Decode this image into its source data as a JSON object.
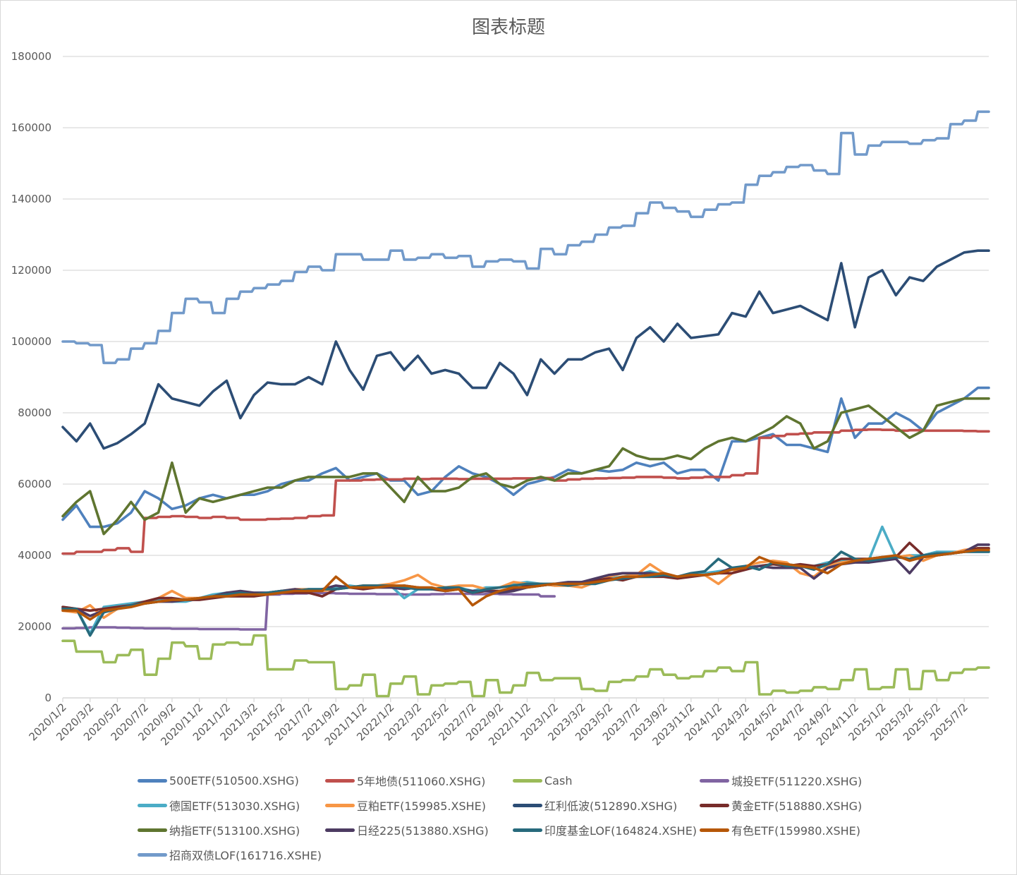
{
  "chart_data": {
    "type": "line",
    "title": "图表标题",
    "xlabel": "",
    "ylabel": "",
    "ylim": [
      0,
      180000
    ],
    "yticks": [
      "0",
      "20000",
      "40000",
      "60000",
      "80000",
      "100000",
      "120000",
      "140000",
      "160000",
      "180000"
    ],
    "grid": true,
    "legend_position": "bottom",
    "x_ticks": [
      "2020/1/2",
      "2020/3/2",
      "2020/5/2",
      "2020/7/2",
      "2020/9/2",
      "2020/11/2",
      "2021/1/2",
      "2021/3/2",
      "2021/5/2",
      "2021/7/2",
      "2021/9/2",
      "2021/11/2",
      "2022/1/2",
      "2022/3/2",
      "2022/5/2",
      "2022/7/2",
      "2022/9/2",
      "2022/11/2",
      "2023/1/2",
      "2023/3/2",
      "2023/5/2",
      "2023/7/2",
      "2023/9/2",
      "2023/11/2",
      "2024/1/2",
      "2024/3/2",
      "2024/5/2",
      "2024/7/2",
      "2024/9/2",
      "2024/11/2",
      "2025/1/2",
      "2025/3/2",
      "2025/5/2",
      "2025/7/2"
    ],
    "x_months": "monthly from 2020/1 to 2025/8",
    "series": [
      {
        "name": "500ETF(510500.XSHG)",
        "color": "#4f81bd",
        "values": [
          50000,
          54000,
          48000,
          48000,
          49000,
          52000,
          58000,
          56000,
          53000,
          54000,
          56000,
          57000,
          56000,
          57000,
          57000,
          58000,
          60000,
          61000,
          61000,
          63000,
          64500,
          61000,
          62000,
          63000,
          61000,
          61000,
          57000,
          58000,
          62000,
          65000,
          63000,
          62000,
          60000,
          57000,
          60000,
          61000,
          62000,
          64000,
          63000,
          64000,
          63500,
          64000,
          66000,
          65000,
          66000,
          63000,
          64000,
          64000,
          61000,
          72000,
          72000,
          73000,
          74000,
          71000,
          71000,
          70000,
          69000,
          84000,
          73000,
          77000,
          77000,
          80000,
          78000,
          75000,
          80000,
          82000,
          84000,
          87000
        ]
      },
      {
        "name": "5年地债(511060.XSHG)",
        "color": "#c0504d",
        "step": true,
        "values": [
          40500,
          41000,
          41000,
          41500,
          42000,
          41000,
          50500,
          50800,
          51000,
          50800,
          50500,
          50800,
          50500,
          50000,
          50000,
          50200,
          50300,
          50500,
          51000,
          51200,
          61000,
          61000,
          61200,
          61300,
          61300,
          61500,
          61400,
          61500,
          61500,
          61400,
          61500,
          61500,
          61500,
          61600,
          61600,
          61700,
          61000,
          61300,
          61500,
          61600,
          61700,
          61800,
          62000,
          62000,
          61800,
          61600,
          61800,
          62000,
          62000,
          62500,
          63000,
          73000,
          73500,
          74000,
          74200,
          74500,
          74500,
          75000,
          75200,
          75300,
          75200,
          75000,
          75100,
          75000,
          75000,
          75000,
          74900,
          74800
        ]
      },
      {
        "name": "Cash",
        "color": "#9bbb59",
        "step": true,
        "values": [
          16000,
          13000,
          13000,
          10000,
          12000,
          13500,
          6500,
          11000,
          15500,
          14500,
          11000,
          15000,
          15500,
          15000,
          17500,
          8000,
          8000,
          10500,
          10000,
          10000,
          2500,
          3500,
          6500,
          500,
          4000,
          6000,
          1000,
          3500,
          4000,
          4500,
          500,
          5000,
          1500,
          3500,
          7000,
          5000,
          5500,
          5500,
          2500,
          2000,
          4500,
          5000,
          6000,
          8000,
          6500,
          5500,
          6000,
          7500,
          8500,
          7500,
          10000,
          1000,
          2000,
          1500,
          2000,
          3000,
          2500,
          5000,
          8000,
          2500,
          3000,
          8000,
          2500,
          7500,
          5000,
          7000,
          8000,
          8500
        ]
      },
      {
        "name": "城投ETF(511220.XSHG)",
        "color": "#8064a2",
        "step": true,
        "values": [
          19500,
          19600,
          19800,
          19800,
          19700,
          19600,
          19500,
          19500,
          19400,
          19400,
          19300,
          19300,
          19300,
          19200,
          19200,
          29000,
          29200,
          29300,
          29400,
          29400,
          29300,
          29200,
          29200,
          29100,
          29100,
          29000,
          29000,
          29100,
          29200,
          29200,
          29100,
          29200,
          29100,
          29000,
          29000,
          28500,
          28500,
          null,
          null,
          null,
          null,
          null,
          null,
          null,
          null,
          null,
          null,
          null,
          null,
          null,
          null,
          null,
          null,
          null,
          null,
          null,
          null,
          null,
          null,
          null,
          null,
          null,
          null,
          null,
          null,
          null,
          null,
          null
        ]
      },
      {
        "name": "德国ETF(513030.XSHG)",
        "color": "#4bacc6",
        "values": [
          25500,
          25000,
          18000,
          25500,
          26000,
          26500,
          27000,
          27500,
          27000,
          27000,
          28000,
          29000,
          29500,
          29000,
          29500,
          29500,
          30000,
          30000,
          30500,
          30500,
          31000,
          31500,
          31000,
          31000,
          31500,
          28000,
          30500,
          30500,
          31000,
          31000,
          30000,
          31000,
          31000,
          32000,
          32500,
          32000,
          31500,
          32000,
          32500,
          33000,
          33500,
          34000,
          34500,
          35500,
          34500,
          34000,
          34500,
          35000,
          35500,
          36000,
          36500,
          37000,
          37500,
          37500,
          37000,
          37000,
          38000,
          38500,
          39000,
          38500,
          48000,
          39500,
          40000,
          40000,
          41000,
          41000,
          41000,
          41000
        ]
      },
      {
        "name": "豆粕ETF(159985.XSHE)",
        "color": "#f79646",
        "values": [
          24500,
          24000,
          26000,
          22500,
          25000,
          26000,
          27000,
          28000,
          30000,
          28000,
          28000,
          28500,
          29000,
          29500,
          29000,
          29500,
          30000,
          30500,
          30500,
          30000,
          30500,
          31000,
          31500,
          31500,
          32000,
          33000,
          34500,
          32000,
          31000,
          31500,
          31500,
          30500,
          31000,
          32500,
          32000,
          32000,
          31500,
          31500,
          31000,
          32500,
          34000,
          35000,
          34500,
          37500,
          35000,
          34000,
          34500,
          34500,
          32000,
          35000,
          37000,
          38000,
          38500,
          38000,
          35000,
          34000,
          37000,
          38000,
          38500,
          38000,
          39000,
          39500,
          40000,
          38500,
          40000,
          40500,
          41500,
          42000
        ]
      },
      {
        "name": "红利低波(512890.XSHG)",
        "color": "#2c4d75",
        "values": [
          76000,
          72000,
          77000,
          70000,
          71500,
          74000,
          77000,
          88000,
          84000,
          83000,
          82000,
          86000,
          89000,
          78500,
          85000,
          88500,
          88000,
          88000,
          90000,
          88000,
          100000,
          92000,
          86500,
          96000,
          97000,
          92000,
          96000,
          91000,
          92000,
          91000,
          87000,
          87000,
          94000,
          91000,
          85000,
          95000,
          91000,
          95000,
          95000,
          97000,
          98000,
          92000,
          101000,
          104000,
          100000,
          105000,
          101000,
          101500,
          102000,
          108000,
          107000,
          114000,
          108000,
          109000,
          110000,
          108000,
          106000,
          122000,
          104000,
          118000,
          120000,
          113000,
          118000,
          117000,
          121000,
          123000,
          125000,
          125500
        ]
      },
      {
        "name": "黄金ETF(518880.XSHG)",
        "color": "#772c2a",
        "values": [
          25500,
          25000,
          24500,
          25000,
          25500,
          26000,
          27000,
          28000,
          28000,
          27500,
          27500,
          28000,
          28500,
          28500,
          28500,
          29000,
          29500,
          29500,
          29500,
          28500,
          30500,
          31000,
          30500,
          31000,
          31000,
          31500,
          31000,
          30500,
          30000,
          30500,
          29500,
          30000,
          30000,
          30500,
          31500,
          31500,
          32000,
          32000,
          32500,
          33000,
          33500,
          33000,
          34000,
          34000,
          34000,
          33500,
          34000,
          34500,
          35000,
          35000,
          36000,
          37000,
          37500,
          37000,
          37500,
          37000,
          37500,
          39000,
          39000,
          39000,
          39500,
          39500,
          43500,
          40000,
          40500,
          40500,
          41000,
          42000
        ]
      },
      {
        "name": "纳指ETF(513100.XSHG)",
        "color": "#5f7530",
        "values": [
          51000,
          55000,
          58000,
          46000,
          50000,
          55000,
          50000,
          52000,
          66000,
          52000,
          56000,
          55000,
          56000,
          57000,
          58000,
          59000,
          59000,
          61000,
          62000,
          62000,
          62000,
          62000,
          63000,
          63000,
          59000,
          55000,
          62000,
          58000,
          58000,
          59000,
          62000,
          63000,
          60000,
          59000,
          61000,
          62000,
          61000,
          63000,
          63000,
          64000,
          65000,
          70000,
          68000,
          67000,
          67000,
          68000,
          67000,
          70000,
          72000,
          73000,
          72000,
          74000,
          76000,
          79000,
          77000,
          70000,
          72000,
          80000,
          81000,
          82000,
          79000,
          76000,
          73000,
          75000,
          82000,
          83000,
          84000,
          84000
        ]
      },
      {
        "name": "日经225(513880.XSHG)",
        "color": "#4d3b62",
        "values": [
          25000,
          25000,
          23000,
          24500,
          25000,
          26000,
          26500,
          27000,
          27000,
          27500,
          28000,
          28500,
          29500,
          30000,
          29500,
          29500,
          30000,
          30500,
          30000,
          30500,
          31500,
          31000,
          31000,
          31000,
          31000,
          30500,
          31000,
          30500,
          30500,
          30500,
          30000,
          30000,
          29500,
          30000,
          31000,
          31500,
          32000,
          32500,
          32500,
          33500,
          34500,
          35000,
          35000,
          35000,
          34500,
          34000,
          34500,
          34500,
          35000,
          36500,
          36500,
          37000,
          36500,
          36500,
          36500,
          33500,
          36500,
          37500,
          38000,
          38000,
          38500,
          39000,
          35000,
          39500,
          40000,
          40500,
          41000,
          43000
        ]
      },
      {
        "name": "印度基金LOF(164824.XSHE)",
        "color": "#276a7c",
        "values": [
          25000,
          25000,
          17500,
          24000,
          25000,
          26000,
          26500,
          27000,
          27500,
          27500,
          28000,
          28500,
          29000,
          29500,
          29000,
          29500,
          30000,
          30000,
          30500,
          30500,
          30500,
          31000,
          31500,
          31500,
          31500,
          31000,
          30500,
          30500,
          31000,
          31000,
          29500,
          30500,
          31000,
          31500,
          32000,
          32000,
          32000,
          31500,
          32000,
          32000,
          33000,
          33500,
          34000,
          34000,
          34500,
          34000,
          35000,
          35500,
          39000,
          36500,
          37000,
          36000,
          38000,
          37000,
          37000,
          36000,
          37500,
          41000,
          39000,
          38500,
          39000,
          39500,
          39000,
          40000,
          40500,
          40500,
          41000,
          41000
        ]
      },
      {
        "name": "有色ETF(159980.XSHE)",
        "color": "#b65708",
        "values": [
          24500,
          24500,
          22000,
          24500,
          25000,
          25500,
          26500,
          27000,
          27500,
          27500,
          28000,
          28500,
          28500,
          29000,
          29000,
          29000,
          29500,
          30000,
          30000,
          30000,
          34000,
          31000,
          31000,
          31000,
          31500,
          31500,
          31000,
          31000,
          30000,
          30500,
          26000,
          28500,
          30000,
          31000,
          31000,
          31500,
          32000,
          32000,
          32000,
          32500,
          33000,
          34000,
          34000,
          34500,
          35000,
          34000,
          34500,
          34500,
          35000,
          36000,
          36500,
          39500,
          38000,
          37500,
          37000,
          36500,
          35000,
          37500,
          38500,
          39000,
          39500,
          40000,
          38500,
          39500,
          40000,
          40500,
          41000,
          41500
        ]
      },
      {
        "name": "招商双债LOF(161716.XSHE)",
        "color": "#729aca",
        "step": true,
        "values": [
          100000,
          99500,
          99000,
          94000,
          95000,
          98000,
          99500,
          103000,
          108000,
          112000,
          111000,
          108000,
          112000,
          114000,
          115000,
          116000,
          117000,
          119500,
          121000,
          120000,
          124500,
          124500,
          123000,
          123000,
          125500,
          123000,
          123500,
          124500,
          123500,
          124000,
          121000,
          122500,
          123000,
          122500,
          120500,
          126000,
          124500,
          127000,
          128000,
          130000,
          132000,
          132500,
          136000,
          139000,
          137500,
          136500,
          135000,
          137000,
          138500,
          139000,
          144000,
          146500,
          147500,
          149000,
          149500,
          148000,
          147000,
          158500,
          152500,
          155000,
          156000,
          156000,
          155500,
          156500,
          157000,
          161000,
          162000,
          164500
        ]
      }
    ]
  }
}
